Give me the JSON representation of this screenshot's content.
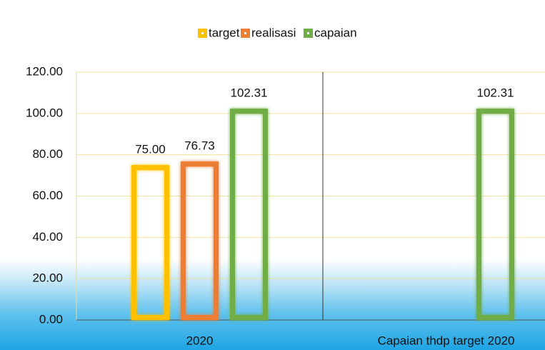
{
  "chart_data": {
    "type": "bar",
    "categories": [
      "2020",
      "Capaian thdp target 2020"
    ],
    "series": [
      {
        "name": "target",
        "color": "#ffc000",
        "values": [
          75,
          null
        ],
        "value_labels": [
          "75.00",
          null
        ]
      },
      {
        "name": "realisasi",
        "color": "#ed7d31",
        "values": [
          76.73,
          null
        ],
        "value_labels": [
          "76.73",
          null
        ]
      },
      {
        "name": "capaian",
        "color": "#70ad47",
        "values": [
          102.31,
          102.31
        ],
        "value_labels": [
          "102.31",
          "102.31"
        ]
      }
    ],
    "ylim": [
      0,
      120
    ],
    "yticks": [
      {
        "value": 0,
        "label": "0.00"
      },
      {
        "value": 20,
        "label": "20.00"
      },
      {
        "value": 40,
        "label": "40.00"
      },
      {
        "value": 60,
        "label": "60.00"
      },
      {
        "value": 80,
        "label": "80.00"
      },
      {
        "value": 100,
        "label": "100.00"
      },
      {
        "value": 120,
        "label": "120.00"
      }
    ],
    "grid": true,
    "legend": "top"
  }
}
